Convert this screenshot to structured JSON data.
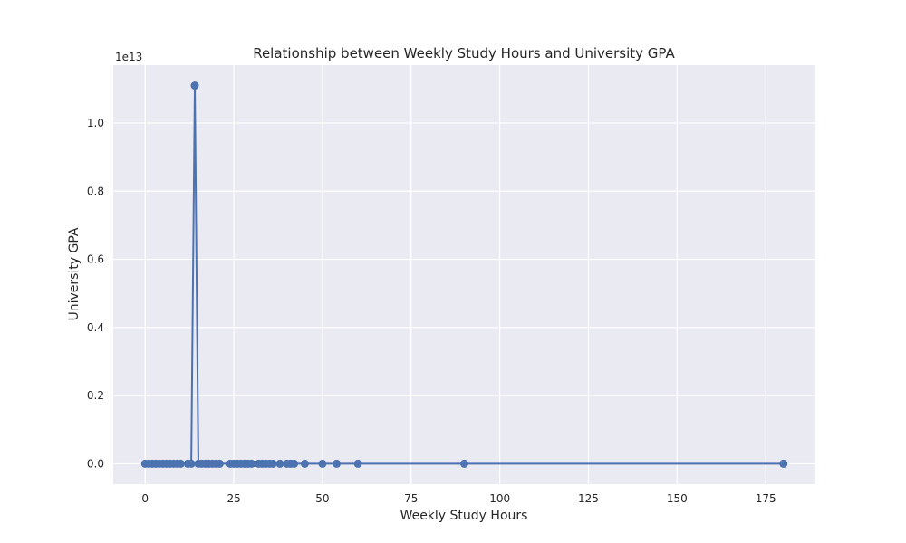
{
  "chart_data": {
    "type": "line",
    "title": "Relationship between Weekly Study Hours and University GPA",
    "xlabel": "Weekly Study Hours",
    "ylabel": "University GPA",
    "y_offset_label": "1e13",
    "y_scale_factor": 10000000000000.0,
    "xlim": [
      -9,
      189
    ],
    "ylim": [
      -600000000000.0,
      11700000000000.0
    ],
    "x_ticks": [
      0,
      25,
      50,
      75,
      100,
      125,
      150,
      175
    ],
    "y_ticks": [
      0,
      2000000000000.0,
      4000000000000.0,
      6000000000000.0,
      8000000000000.0,
      10000000000000.0
    ],
    "y_tick_labels": [
      "0.0",
      "0.2",
      "0.4",
      "0.6",
      "0.8",
      "1.0"
    ],
    "grid": true,
    "background_color": "#eaeaf2",
    "series_color": "#4c72b0",
    "series": [
      {
        "x": [
          0,
          1,
          2,
          3,
          4,
          5,
          6,
          7,
          8,
          9,
          10,
          12,
          13,
          14,
          15,
          16,
          17,
          18,
          19,
          20,
          21,
          24,
          25,
          26,
          27,
          28,
          29,
          30,
          32,
          33,
          34,
          35,
          36,
          38,
          40,
          41,
          42,
          45,
          50,
          54,
          60,
          90,
          180
        ],
        "y": [
          3.0,
          3.0,
          3.0,
          3.0,
          3.0,
          3.0,
          3.0,
          3.0,
          3.0,
          3.0,
          3.0,
          3.0,
          3.0,
          11100000000000,
          3.0,
          3.0,
          3.0,
          3.0,
          3.0,
          3.0,
          3.0,
          3.0,
          3.0,
          3.0,
          3.0,
          3.0,
          3.0,
          3.0,
          3.0,
          3.0,
          3.0,
          3.0,
          3.0,
          3.0,
          3.0,
          3.0,
          3.0,
          3.0,
          3.0,
          3.0,
          3.0,
          3.0,
          3.0
        ]
      }
    ]
  }
}
